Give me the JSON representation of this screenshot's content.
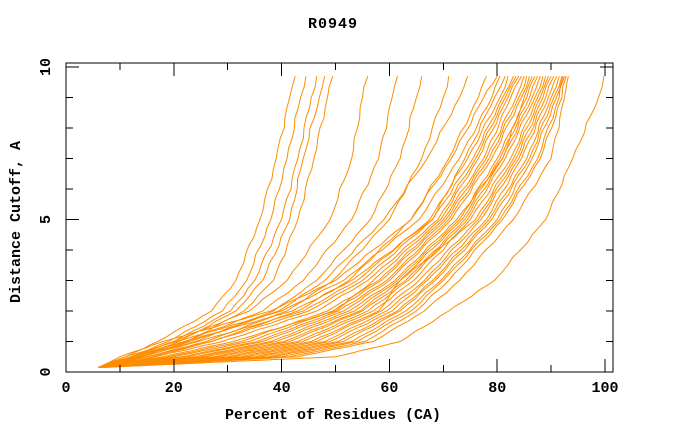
{
  "title": "R0949",
  "chart_data": {
    "type": "line",
    "title": "R0949",
    "xlabel": "Percent of Residues (CA)",
    "ylabel": "Distance Cutoff, A",
    "xlim": [
      0,
      101.5
    ],
    "ylim": [
      0,
      10.15
    ],
    "x_ticks_major": [
      0,
      20,
      40,
      60,
      80,
      100
    ],
    "x_ticks_minor": [
      10,
      30,
      50,
      70,
      90
    ],
    "y_ticks_major": [
      0,
      5,
      10
    ],
    "y_ticks_minor": [
      1,
      2,
      3,
      4,
      6,
      7,
      8,
      9
    ],
    "grid": false,
    "legend": "none",
    "line_color": "#ff8c00",
    "axis_color": "#000000",
    "background_color": "#ffffff",
    "description": "Family of cumulative model-accuracy curves: percent of CA residues (x) within a distance cutoff in Angstroms (y); each orange curve is one prediction.",
    "y_levels": [
      0.15,
      0.5,
      1,
      2,
      3,
      5,
      7,
      9,
      9.7
    ],
    "series": [
      {
        "x": [
          6,
          11,
          17,
          27,
          31.5,
          36,
          39,
          41.5,
          42.5
        ]
      },
      {
        "x": [
          6.5,
          12,
          19,
          29,
          33.5,
          38,
          41,
          43.5,
          44.5
        ]
      },
      {
        "x": [
          7,
          12.5,
          20,
          30.5,
          35,
          40,
          43,
          45.5,
          46.5
        ]
      },
      {
        "x": [
          6,
          13,
          21,
          31.5,
          36.5,
          41.5,
          44,
          47,
          48
        ]
      },
      {
        "x": [
          7,
          14,
          22.5,
          33,
          38.5,
          43,
          46,
          48.5,
          49.5
        ]
      },
      {
        "x": [
          6,
          12,
          20,
          34,
          41,
          49,
          53,
          55,
          56
        ]
      },
      {
        "x": [
          7,
          13,
          22,
          36.5,
          44,
          53,
          58,
          60.5,
          61.5
        ]
      },
      {
        "x": [
          6.5,
          14,
          24,
          38.5,
          46.5,
          56.5,
          62,
          65,
          66
        ]
      },
      {
        "x": [
          7,
          15,
          26,
          41,
          49.5,
          60,
          66,
          70,
          71
        ]
      },
      {
        "x": [
          6.5,
          13.5,
          23,
          39.5,
          48,
          59,
          67,
          73,
          74.5
        ]
      },
      {
        "x": [
          7.5,
          16,
          27,
          43,
          52.5,
          64,
          71,
          76.5,
          78
        ]
      },
      {
        "x": [
          6,
          10,
          18,
          38,
          50,
          64,
          71.5,
          77.5,
          80
        ]
      },
      {
        "x": [
          6.5,
          11,
          20.5,
          40,
          51.5,
          65.5,
          73,
          79,
          80.5
        ]
      },
      {
        "x": [
          7,
          12.5,
          22,
          42,
          53,
          68,
          74,
          79.5,
          81.5
        ]
      },
      {
        "x": [
          6,
          14,
          24.5,
          44,
          54,
          67.5,
          74.5,
          80.5,
          82
        ]
      },
      {
        "x": [
          6.5,
          15,
          27,
          45,
          55,
          68,
          75.5,
          81,
          83
        ]
      },
      {
        "x": [
          7,
          16.5,
          29,
          46.5,
          56,
          69,
          76,
          81.5,
          83.5
        ]
      },
      {
        "x": [
          6,
          18,
          31,
          50,
          57,
          69.5,
          76.5,
          82,
          84
        ]
      },
      {
        "x": [
          6.5,
          19,
          32.5,
          48.5,
          58,
          70,
          77.5,
          82.5,
          84.5
        ]
      },
      {
        "x": [
          7,
          20,
          34,
          49.5,
          58.5,
          70.5,
          78,
          83.5,
          85
        ]
      },
      {
        "x": [
          6,
          21.5,
          35.5,
          50.5,
          59.5,
          71,
          78.5,
          84,
          85.5
        ]
      },
      {
        "x": [
          6.5,
          22.5,
          36.5,
          51.5,
          60,
          71.5,
          79,
          84.5,
          86
        ]
      },
      {
        "x": [
          7,
          24,
          38,
          52.5,
          61,
          72.5,
          81,
          85,
          86.5
        ]
      },
      {
        "x": [
          6,
          25,
          39,
          53.5,
          61.5,
          73,
          80,
          85.5,
          87
        ]
      },
      {
        "x": [
          6.5,
          26,
          40.5,
          54.5,
          62,
          73.5,
          80.5,
          86,
          87.5
        ]
      },
      {
        "x": [
          7,
          27.5,
          41.5,
          55,
          63,
          74,
          81,
          86.5,
          88
        ]
      },
      {
        "x": [
          6,
          28.5,
          43,
          56,
          63.5,
          74.5,
          81.5,
          87,
          88.5
        ]
      },
      {
        "x": [
          6.5,
          30,
          44,
          57,
          64.5,
          75,
          82.5,
          87.5,
          89
        ]
      },
      {
        "x": [
          7,
          31,
          45.5,
          58,
          62,
          76,
          83,
          88,
          89.5
        ]
      },
      {
        "x": [
          6,
          32.5,
          46.5,
          58.5,
          65.5,
          76.5,
          83.5,
          88.5,
          90
        ]
      },
      {
        "x": [
          6.5,
          33.5,
          48,
          59.5,
          66.5,
          77,
          84,
          89,
          90.5
        ]
      },
      {
        "x": [
          7,
          35,
          49,
          60.5,
          67,
          78,
          84.5,
          89.5,
          91
        ]
      },
      {
        "x": [
          6,
          36,
          50.5,
          61.5,
          68,
          78.5,
          85.5,
          90,
          91.5
        ]
      },
      {
        "x": [
          6.5,
          37.5,
          51.5,
          62,
          68.5,
          79,
          86,
          90.5,
          92
        ]
      },
      {
        "x": [
          7,
          38.5,
          53,
          63,
          69.5,
          80,
          86.5,
          91,
          92.5
        ]
      },
      {
        "x": [
          6.5,
          40,
          54,
          64,
          70,
          80.5,
          87.5,
          91.5,
          92.2
        ]
      },
      {
        "x": [
          7,
          41.5,
          55.5,
          65,
          71,
          81,
          88,
          92,
          92.8
        ]
      },
      {
        "x": [
          6.5,
          43,
          57,
          66.5,
          73,
          83,
          90,
          92.5,
          93.2
        ]
      },
      {
        "x": [
          7,
          50,
          62,
          71,
          79.5,
          89,
          94,
          98.8,
          99.8
        ]
      }
    ]
  }
}
